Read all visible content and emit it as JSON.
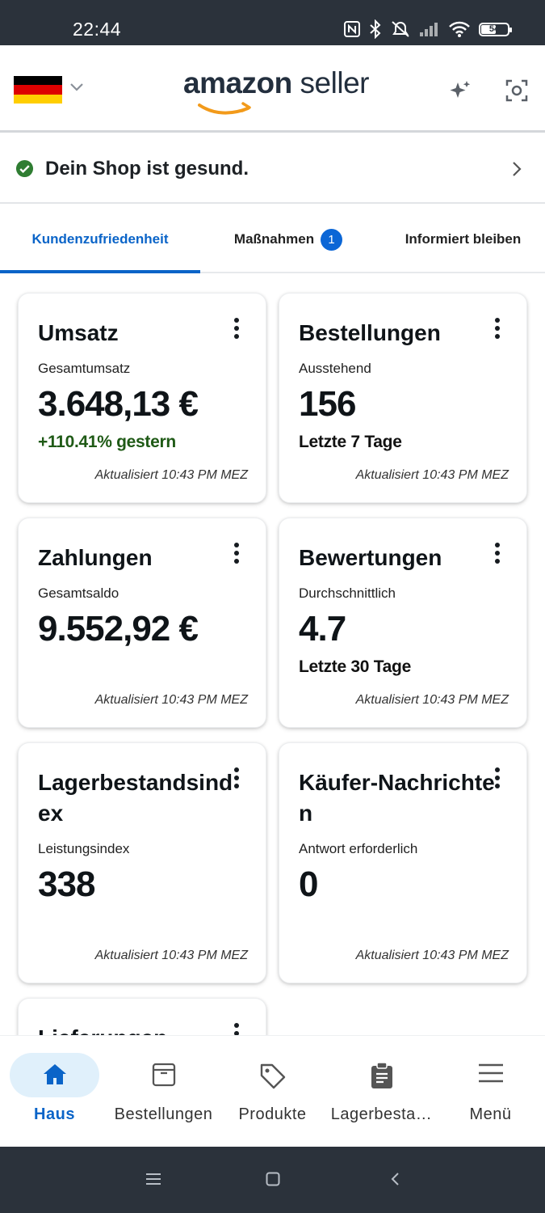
{
  "status_bar": {
    "time": "22:44",
    "battery": "54",
    "icons": [
      "nfc-icon",
      "bluetooth-icon",
      "mute-icon",
      "signal-icon",
      "wifi-icon",
      "battery-icon"
    ]
  },
  "header": {
    "country_flag": "de-flag-icon",
    "logo_brand": "amazon",
    "logo_product": "seller",
    "actions": [
      "sparkle-icon",
      "scan-icon"
    ]
  },
  "health": {
    "message": "Dein Shop ist gesund.",
    "status_color": "#2f7d32"
  },
  "tabs": [
    {
      "label": "Kundenzufriedenheit",
      "active": true
    },
    {
      "label": "Maßnahmen",
      "badge": "1"
    },
    {
      "label": "Informiert bleiben"
    }
  ],
  "cards": {
    "sales": {
      "title": "Umsatz",
      "subtitle": "Gesamtumsatz",
      "value": "3.648,13 €",
      "meta": "+110.41% gestern",
      "updated": "Aktualisiert 10:43 PM MEZ"
    },
    "orders": {
      "title": "Bestellungen",
      "subtitle": "Ausstehend",
      "value": "156",
      "meta": "Letzte 7 Tage",
      "updated": "Aktualisiert 10:43 PM MEZ"
    },
    "payments": {
      "title": "Zahlungen",
      "subtitle": "Gesamtsaldo",
      "value": "9.552,92 €",
      "updated": "Aktualisiert 10:43 PM MEZ"
    },
    "ratings": {
      "title": "Bewertungen",
      "subtitle": "Durchschnittlich",
      "value": "4.7",
      "meta": "Letzte 30 Tage",
      "updated": "Aktualisiert 10:43 PM MEZ"
    },
    "inventory": {
      "title": "Lagerbestandsindex",
      "subtitle": "Leistungsindex",
      "value": "338",
      "updated": "Aktualisiert 10:43 PM MEZ"
    },
    "messages": {
      "title": "Käufer-Nachrichten",
      "subtitle": "Antwort erforderlich",
      "value": "0",
      "updated": "Aktualisiert 10:43 PM MEZ"
    },
    "deliveries": {
      "title": "Lieferungen"
    }
  },
  "bottom_nav": [
    {
      "label": "Haus",
      "icon": "home-icon",
      "active": true
    },
    {
      "label": "Bestellungen",
      "icon": "box-icon"
    },
    {
      "label": "Produkte",
      "icon": "tag-icon"
    },
    {
      "label": "Lagerbesta…",
      "icon": "clipboard-icon"
    },
    {
      "label": "Menü",
      "icon": "hamburger-icon"
    }
  ],
  "colors": {
    "accent": "#0a64c8",
    "status_bar": "#2b323b",
    "positive": "#1f5a16",
    "amazon_orange": "#f29a1a"
  }
}
